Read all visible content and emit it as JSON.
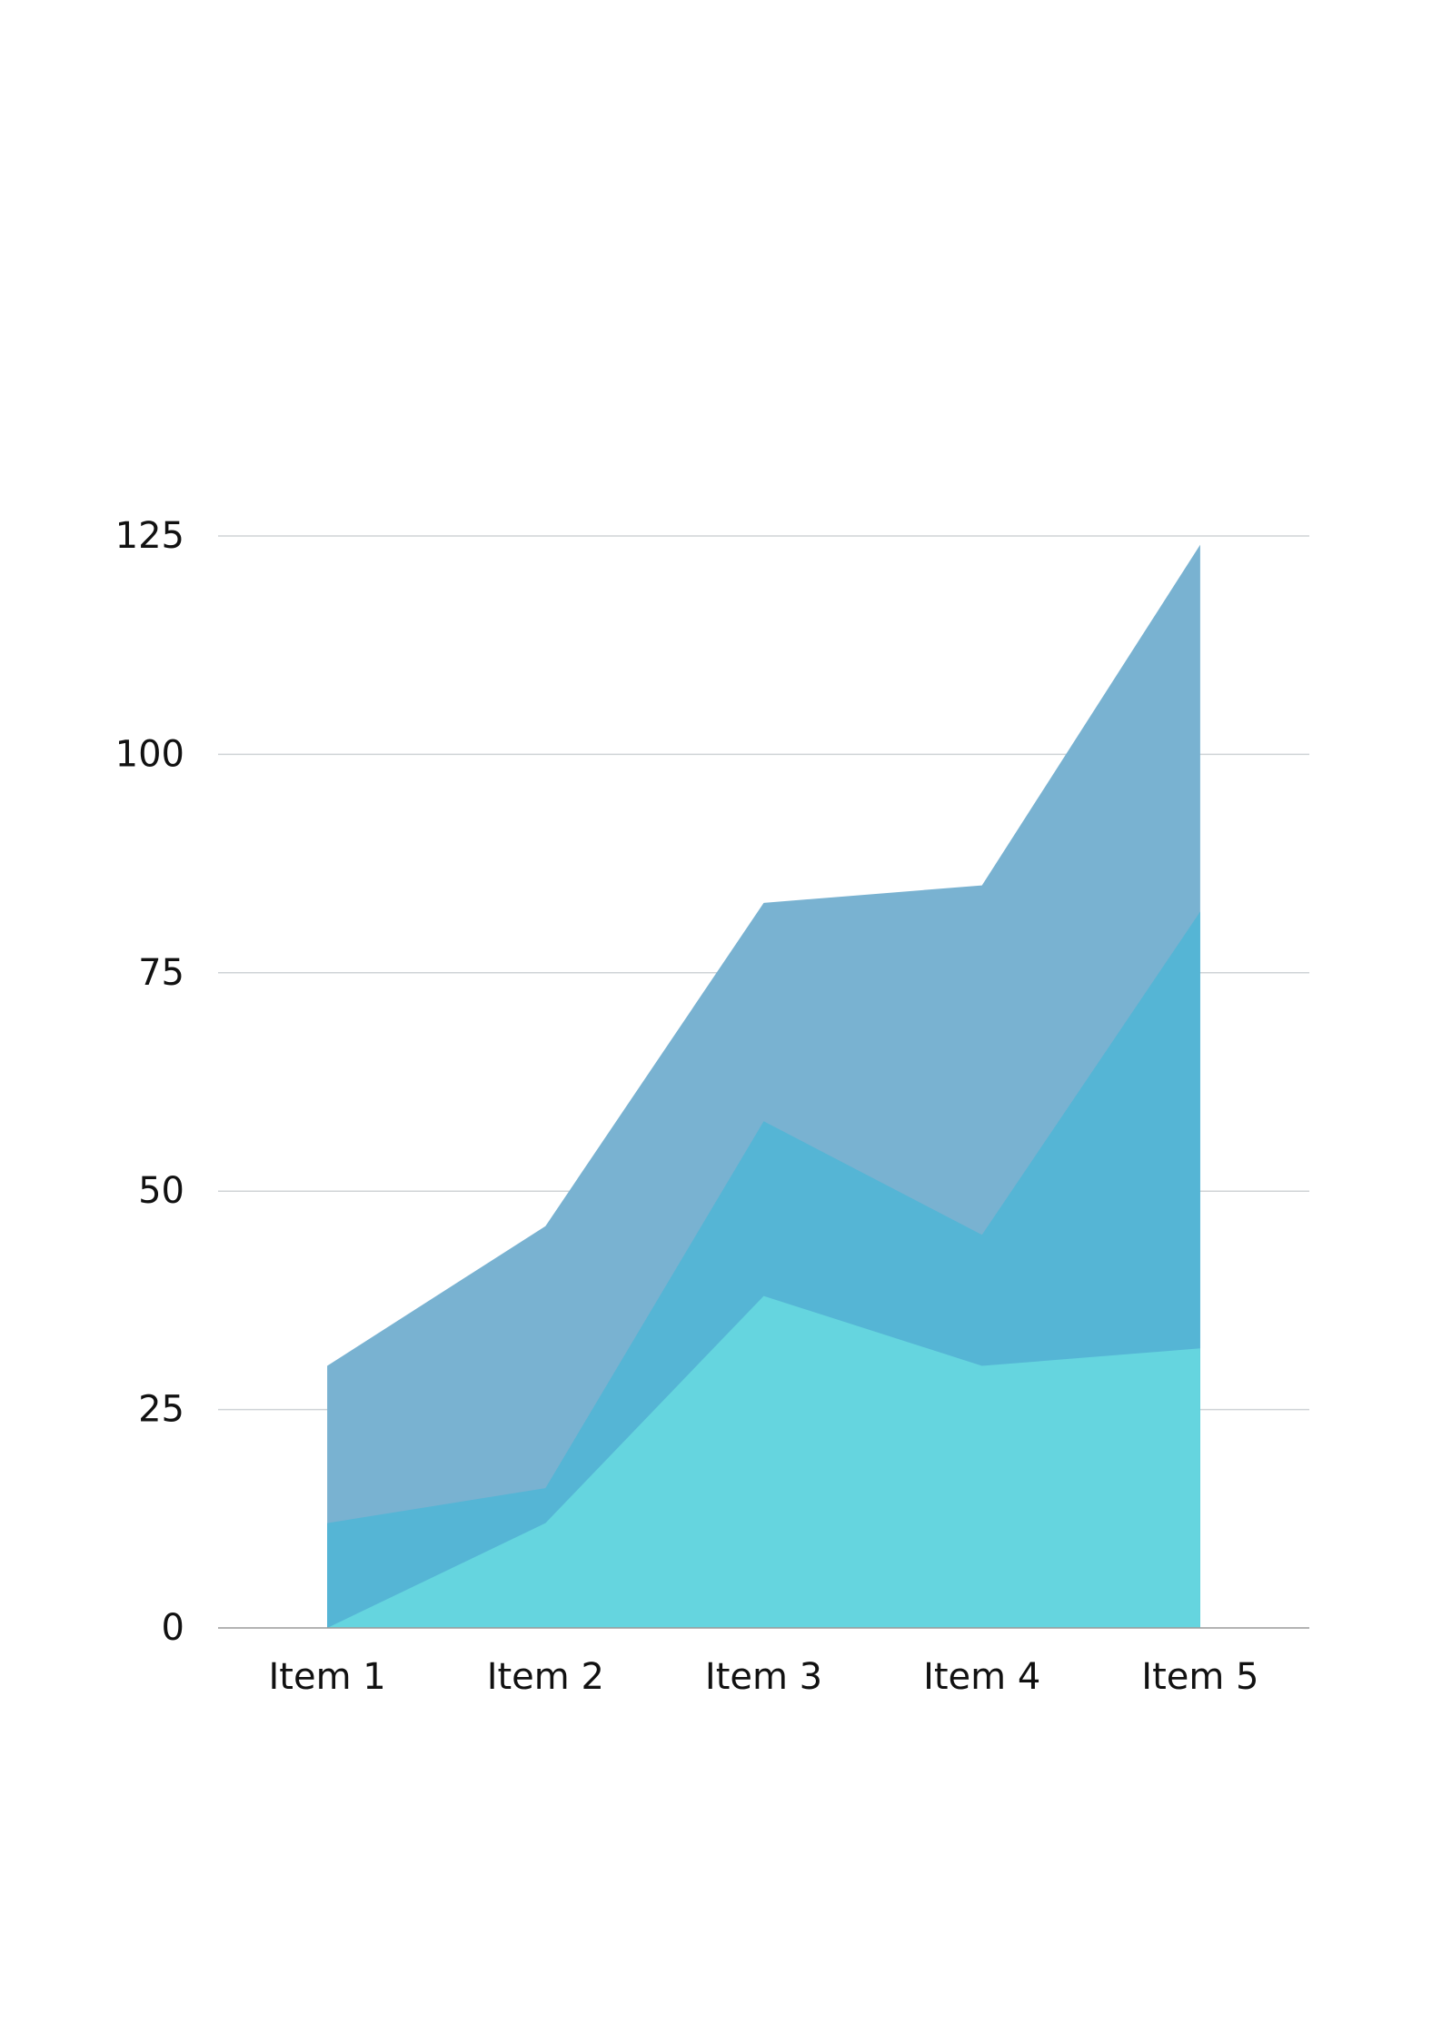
{
  "chart_data": {
    "type": "area",
    "title": "",
    "xlabel": "",
    "ylabel": "",
    "categories": [
      "Item 1",
      "Item 2",
      "Item 3",
      "Item 4",
      "Item 5"
    ],
    "y_ticks": [
      "0",
      "25",
      "50",
      "75",
      "100",
      "125"
    ],
    "ylim": [
      0,
      125
    ],
    "grid": true,
    "legend": "none",
    "series": [
      {
        "values": [
          30,
          46,
          83,
          85,
          124
        ],
        "color": "#79b2d1"
      },
      {
        "values": [
          12,
          16,
          58,
          45,
          82
        ],
        "color": "#55b5d5"
      },
      {
        "values": [
          0,
          12,
          38,
          30,
          32
        ],
        "color": "#65d5df"
      }
    ],
    "gridline_color": "#cfd3d6",
    "axis_color": "#9a9a9a"
  }
}
